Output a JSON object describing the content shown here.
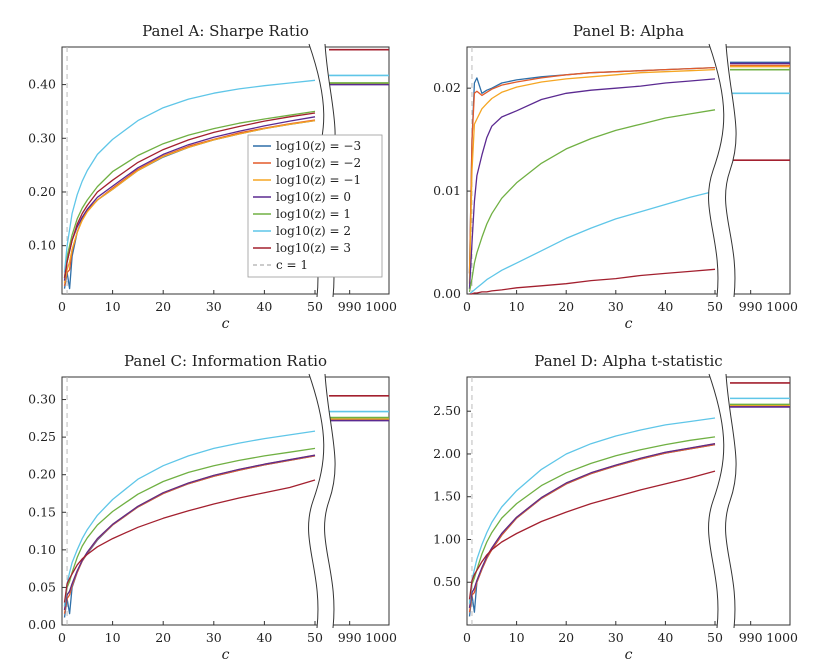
{
  "chart_data": [
    {
      "panel": "A",
      "type": "line",
      "title": "Panel A: Sharpe Ratio",
      "xlabel": "c",
      "ylabel": "",
      "xlim": [
        0,
        50
      ],
      "break_xlim": [
        985,
        1000
      ],
      "ylim": [
        0.01,
        0.47
      ],
      "yticks": [
        0.1,
        0.2,
        0.3,
        0.4
      ],
      "ytick_labels": [
        "0.10",
        "0.20",
        "0.30",
        "0.40"
      ],
      "xticks": [
        0,
        10,
        20,
        30,
        40,
        50
      ],
      "xtick_labels": [
        "0",
        "10",
        "20",
        "30",
        "40",
        "50"
      ],
      "break_xticks": [
        990,
        1000
      ],
      "break_xtick_labels": [
        "990",
        "1000"
      ],
      "reference_line": {
        "x": 1,
        "label": "c = 1",
        "color": "#bbbbbb"
      },
      "legend": {
        "position": "center-right",
        "entries": [
          "log10(z) = −3",
          "log10(z) = −2",
          "log10(z) = −1",
          "log10(z) = 0",
          "log10(z) = 1",
          "log10(z) = 2",
          "log10(z) = 3",
          "c = 1"
        ]
      },
      "x": [
        0.5,
        1,
        1.5,
        2,
        3,
        4,
        5,
        7,
        10,
        15,
        20,
        25,
        30,
        35,
        40,
        45,
        50
      ],
      "series": [
        {
          "name": "log10(z) = −3",
          "color": "#2e6fa8",
          "values": [
            0.02,
            0.05,
            0.02,
            0.08,
            0.125,
            0.15,
            0.165,
            0.185,
            0.205,
            0.24,
            0.265,
            0.283,
            0.297,
            0.308,
            0.318,
            0.326,
            0.333
          ],
          "break_value": 0.402
        },
        {
          "name": "log10(z) = −2",
          "color": "#e35a2a",
          "values": [
            0.025,
            0.05,
            0.055,
            0.09,
            0.125,
            0.148,
            0.165,
            0.185,
            0.207,
            0.242,
            0.267,
            0.285,
            0.298,
            0.31,
            0.319,
            0.327,
            0.334
          ],
          "break_value": 0.402
        },
        {
          "name": "log10(z) = −1",
          "color": "#f5a623",
          "values": [
            0.03,
            0.055,
            0.07,
            0.093,
            0.125,
            0.147,
            0.163,
            0.185,
            0.205,
            0.24,
            0.266,
            0.283,
            0.297,
            0.308,
            0.318,
            0.326,
            0.333
          ],
          "break_value": 0.401
        },
        {
          "name": "log10(z) = 0",
          "color": "#5b2a91",
          "values": [
            0.035,
            0.07,
            0.09,
            0.11,
            0.135,
            0.153,
            0.168,
            0.19,
            0.211,
            0.245,
            0.27,
            0.288,
            0.302,
            0.313,
            0.323,
            0.332,
            0.34
          ],
          "break_value": 0.4
        },
        {
          "name": "log10(z) = 1",
          "color": "#70b043",
          "values": [
            0.04,
            0.08,
            0.1,
            0.12,
            0.15,
            0.17,
            0.185,
            0.21,
            0.238,
            0.268,
            0.29,
            0.306,
            0.318,
            0.328,
            0.336,
            0.343,
            0.35
          ],
          "break_value": 0.403
        },
        {
          "name": "log10(z) = 2",
          "color": "#5fc6e8",
          "values": [
            0.05,
            0.1,
            0.13,
            0.16,
            0.195,
            0.22,
            0.24,
            0.27,
            0.298,
            0.333,
            0.357,
            0.373,
            0.384,
            0.392,
            0.398,
            0.403,
            0.408
          ],
          "break_value": 0.417
        },
        {
          "name": "log10(z) = 3",
          "color": "#a3202f",
          "values": [
            0.04,
            0.07,
            0.09,
            0.11,
            0.14,
            0.16,
            0.175,
            0.2,
            0.222,
            0.255,
            0.279,
            0.297,
            0.311,
            0.322,
            0.332,
            0.34,
            0.347
          ],
          "break_value": 0.465
        }
      ]
    },
    {
      "panel": "B",
      "type": "line",
      "title": "Panel B: Alpha",
      "xlabel": "c",
      "ylabel": "",
      "xlim": [
        0,
        50
      ],
      "break_xlim": [
        985,
        1000
      ],
      "ylim": [
        0,
        0.024
      ],
      "yticks": [
        0,
        0.01,
        0.02
      ],
      "ytick_labels": [
        "0.00",
        "0.01",
        "0.02"
      ],
      "xticks": [
        0,
        10,
        20,
        30,
        40,
        50
      ],
      "xtick_labels": [
        "0",
        "10",
        "20",
        "30",
        "40",
        "50"
      ],
      "break_xticks": [
        990,
        1000
      ],
      "break_xtick_labels": [
        "990",
        "1000"
      ],
      "reference_line": {
        "x": 1,
        "label": "c = 1",
        "color": "#bbbbbb"
      },
      "x": [
        0.5,
        1,
        1.5,
        2,
        3,
        4,
        5,
        7,
        10,
        15,
        20,
        25,
        30,
        35,
        40,
        45,
        50
      ],
      "series": [
        {
          "name": "log10(z) = −3",
          "color": "#2e6fa8",
          "values": [
            0.002,
            0.015,
            0.0205,
            0.021,
            0.0195,
            0.0198,
            0.02,
            0.0205,
            0.0208,
            0.0211,
            0.0213,
            0.0215,
            0.0216,
            0.0217,
            0.0218,
            0.0219,
            0.022
          ],
          "break_value": 0.0225
        },
        {
          "name": "log10(z) = −2",
          "color": "#e35a2a",
          "values": [
            0.002,
            0.015,
            0.0195,
            0.0197,
            0.0193,
            0.0196,
            0.0199,
            0.0203,
            0.0206,
            0.021,
            0.0213,
            0.0215,
            0.0216,
            0.0217,
            0.0218,
            0.0219,
            0.022
          ],
          "break_value": 0.0222
        },
        {
          "name": "log10(z) = −1",
          "color": "#f5a623",
          "values": [
            0.001,
            0.012,
            0.0165,
            0.017,
            0.018,
            0.0185,
            0.019,
            0.0196,
            0.0201,
            0.0206,
            0.0209,
            0.0211,
            0.0213,
            0.0215,
            0.0216,
            0.0217,
            0.0218
          ],
          "break_value": 0.0221
        },
        {
          "name": "log10(z) = 0",
          "color": "#5b2a91",
          "values": [
            0.0005,
            0.005,
            0.009,
            0.0115,
            0.0135,
            0.0152,
            0.0163,
            0.0172,
            0.0178,
            0.0189,
            0.0195,
            0.0198,
            0.02,
            0.0202,
            0.0205,
            0.0207,
            0.0209
          ],
          "break_value": 0.0224
        },
        {
          "name": "log10(z) = 1",
          "color": "#70b043",
          "values": [
            0.0002,
            0.0015,
            0.003,
            0.004,
            0.0055,
            0.0068,
            0.0078,
            0.0093,
            0.0108,
            0.0127,
            0.0141,
            0.0151,
            0.0159,
            0.0165,
            0.0171,
            0.0175,
            0.0179
          ],
          "break_value": 0.0218
        },
        {
          "name": "log10(z) = 2",
          "color": "#5fc6e8",
          "values": [
            0,
            0.0002,
            0.0004,
            0.0006,
            0.001,
            0.0014,
            0.0017,
            0.0023,
            0.003,
            0.0042,
            0.0054,
            0.0064,
            0.0073,
            0.008,
            0.0087,
            0.0094,
            0.01
          ],
          "break_value": 0.0195
        },
        {
          "name": "log10(z) = 3",
          "color": "#a3202f",
          "values": [
            0,
            0,
            0.0001,
            0.0001,
            0.0002,
            0.0002,
            0.0003,
            0.0004,
            0.0006,
            0.0008,
            0.001,
            0.0013,
            0.0015,
            0.0018,
            0.002,
            0.0022,
            0.0024
          ],
          "break_value": 0.013
        }
      ]
    },
    {
      "panel": "C",
      "type": "line",
      "title": "Panel C: Information Ratio",
      "xlabel": "c",
      "ylabel": "",
      "xlim": [
        0,
        50
      ],
      "break_xlim": [
        985,
        1000
      ],
      "ylim": [
        0,
        0.33
      ],
      "yticks": [
        0,
        0.05,
        0.1,
        0.15,
        0.2,
        0.25,
        0.3
      ],
      "ytick_labels": [
        "0.00",
        "0.05",
        "0.10",
        "0.15",
        "0.20",
        "0.25",
        "0.30"
      ],
      "xticks": [
        0,
        10,
        20,
        30,
        40,
        50
      ],
      "xtick_labels": [
        "0",
        "10",
        "20",
        "30",
        "40",
        "50"
      ],
      "break_xticks": [
        990,
        1000
      ],
      "break_xtick_labels": [
        "990",
        "1000"
      ],
      "reference_line": {
        "x": 1,
        "label": "c = 1",
        "color": "#bbbbbb"
      },
      "x": [
        0.5,
        1,
        1.5,
        2,
        3,
        4,
        5,
        7,
        10,
        15,
        20,
        25,
        30,
        35,
        40,
        45,
        50
      ],
      "series": [
        {
          "name": "log10(z) = −3",
          "color": "#2e6fa8",
          "values": [
            0.01,
            0.035,
            0.015,
            0.05,
            0.07,
            0.085,
            0.095,
            0.113,
            0.133,
            0.157,
            0.175,
            0.188,
            0.198,
            0.206,
            0.213,
            0.219,
            0.225
          ],
          "break_value": 0.273
        },
        {
          "name": "log10(z) = −2",
          "color": "#e35a2a",
          "values": [
            0.015,
            0.035,
            0.04,
            0.052,
            0.07,
            0.085,
            0.096,
            0.114,
            0.133,
            0.157,
            0.175,
            0.188,
            0.198,
            0.206,
            0.213,
            0.219,
            0.225
          ],
          "break_value": 0.273
        },
        {
          "name": "log10(z) = −1",
          "color": "#f5a623",
          "values": [
            0.02,
            0.04,
            0.045,
            0.055,
            0.072,
            0.086,
            0.097,
            0.115,
            0.134,
            0.158,
            0.176,
            0.189,
            0.199,
            0.207,
            0.214,
            0.22,
            0.226
          ],
          "break_value": 0.274
        },
        {
          "name": "log10(z) = 0",
          "color": "#5b2a91",
          "values": [
            0.02,
            0.04,
            0.045,
            0.055,
            0.072,
            0.086,
            0.097,
            0.115,
            0.134,
            0.158,
            0.176,
            0.189,
            0.199,
            0.207,
            0.214,
            0.22,
            0.226
          ],
          "break_value": 0.272
        },
        {
          "name": "log10(z) = 1",
          "color": "#70b043",
          "values": [
            0.025,
            0.05,
            0.058,
            0.07,
            0.09,
            0.105,
            0.116,
            0.133,
            0.151,
            0.174,
            0.191,
            0.203,
            0.212,
            0.219,
            0.225,
            0.23,
            0.235
          ],
          "break_value": 0.276
        },
        {
          "name": "log10(z) = 2",
          "color": "#5fc6e8",
          "values": [
            0.025,
            0.055,
            0.07,
            0.083,
            0.1,
            0.115,
            0.127,
            0.146,
            0.167,
            0.194,
            0.212,
            0.225,
            0.235,
            0.242,
            0.248,
            0.253,
            0.258
          ],
          "break_value": 0.284
        },
        {
          "name": "log10(z) = 3",
          "color": "#a3202f",
          "values": [
            0.03,
            0.055,
            0.062,
            0.068,
            0.08,
            0.088,
            0.094,
            0.104,
            0.115,
            0.13,
            0.142,
            0.152,
            0.161,
            0.169,
            0.176,
            0.183,
            0.193
          ],
          "break_value": 0.305
        }
      ]
    },
    {
      "panel": "D",
      "type": "line",
      "title": "Panel D: Alpha t-statistic",
      "xlabel": "c",
      "ylabel": "",
      "xlim": [
        0,
        50
      ],
      "break_xlim": [
        985,
        1000
      ],
      "ylim": [
        0,
        2.9
      ],
      "yticks": [
        0.5,
        1.0,
        1.5,
        2.0,
        2.5
      ],
      "ytick_labels": [
        "0.50",
        "1.00",
        "1.50",
        "2.00",
        "2.50"
      ],
      "xticks": [
        0,
        10,
        20,
        30,
        40,
        50
      ],
      "xtick_labels": [
        "0",
        "10",
        "20",
        "30",
        "40",
        "50"
      ],
      "break_xticks": [
        990,
        1000
      ],
      "break_xtick_labels": [
        "990",
        "1000"
      ],
      "reference_line": {
        "x": 1,
        "label": "c = 1",
        "color": "#bbbbbb"
      },
      "x": [
        0.5,
        1,
        1.5,
        2,
        3,
        4,
        5,
        7,
        10,
        15,
        20,
        25,
        30,
        35,
        40,
        45,
        50
      ],
      "series": [
        {
          "name": "log10(z) = −3",
          "color": "#2e6fa8",
          "values": [
            0.1,
            0.35,
            0.15,
            0.5,
            0.65,
            0.78,
            0.88,
            1.05,
            1.25,
            1.48,
            1.65,
            1.77,
            1.86,
            1.94,
            2.01,
            2.06,
            2.11
          ],
          "break_value": 2.56
        },
        {
          "name": "log10(z) = −2",
          "color": "#e35a2a",
          "values": [
            0.15,
            0.35,
            0.38,
            0.5,
            0.65,
            0.78,
            0.88,
            1.05,
            1.25,
            1.48,
            1.65,
            1.77,
            1.86,
            1.94,
            2.01,
            2.06,
            2.11
          ],
          "break_value": 2.56
        },
        {
          "name": "log10(z) = −1",
          "color": "#f5a623",
          "values": [
            0.2,
            0.38,
            0.43,
            0.52,
            0.67,
            0.8,
            0.9,
            1.07,
            1.26,
            1.49,
            1.66,
            1.78,
            1.87,
            1.95,
            2.02,
            2.07,
            2.12
          ],
          "break_value": 2.57
        },
        {
          "name": "log10(z) = 0",
          "color": "#5b2a91",
          "values": [
            0.2,
            0.38,
            0.43,
            0.52,
            0.67,
            0.8,
            0.9,
            1.07,
            1.26,
            1.49,
            1.66,
            1.78,
            1.87,
            1.95,
            2.02,
            2.07,
            2.12
          ],
          "break_value": 2.55
        },
        {
          "name": "log10(z) = 1",
          "color": "#70b043",
          "values": [
            0.25,
            0.48,
            0.55,
            0.65,
            0.83,
            0.97,
            1.08,
            1.25,
            1.42,
            1.63,
            1.78,
            1.89,
            1.98,
            2.05,
            2.11,
            2.16,
            2.2
          ],
          "break_value": 2.58
        },
        {
          "name": "log10(z) = 2",
          "color": "#5fc6e8",
          "values": [
            0.25,
            0.52,
            0.65,
            0.77,
            0.94,
            1.08,
            1.2,
            1.38,
            1.57,
            1.82,
            2.0,
            2.12,
            2.21,
            2.28,
            2.34,
            2.38,
            2.42
          ],
          "break_value": 2.65
        },
        {
          "name": "log10(z) = 3",
          "color": "#a3202f",
          "values": [
            0.3,
            0.52,
            0.59,
            0.64,
            0.74,
            0.82,
            0.88,
            0.97,
            1.07,
            1.21,
            1.32,
            1.42,
            1.5,
            1.58,
            1.65,
            1.72,
            1.8
          ],
          "break_value": 2.83
        }
      ]
    }
  ]
}
